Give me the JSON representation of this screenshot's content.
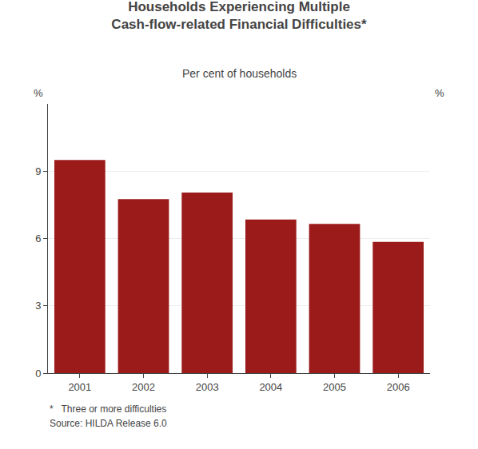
{
  "chart_data": {
    "type": "bar",
    "title": "Households Experiencing Multiple\nCash-flow-related Financial Difficulties*",
    "subtitle": "Per cent of households",
    "categories": [
      "2001",
      "2002",
      "2003",
      "2004",
      "2005",
      "2006"
    ],
    "values": [
      9.5,
      7.75,
      8.05,
      6.85,
      6.65,
      5.85
    ],
    "color": "#9B1B1B",
    "ylabel": "%",
    "y2label": "%",
    "ylim": [
      0,
      12
    ],
    "yticks": [
      0,
      3,
      6,
      9
    ],
    "y2lim": [
      0,
      12
    ],
    "y2ticks": [
      0,
      3,
      6,
      9
    ],
    "grid": true,
    "footnotes": [
      "*   Three or more difficulties",
      "Source: HILDA Release 6.0"
    ]
  }
}
